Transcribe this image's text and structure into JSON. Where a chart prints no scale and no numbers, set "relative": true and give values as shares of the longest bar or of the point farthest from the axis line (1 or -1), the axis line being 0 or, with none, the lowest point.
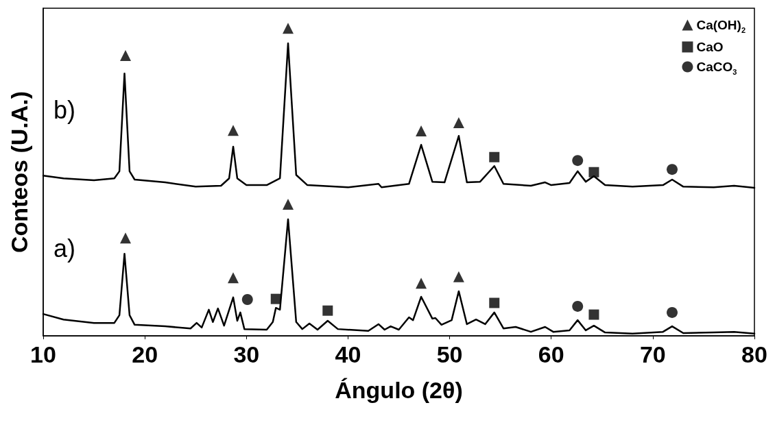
{
  "chart_data": {
    "type": "line",
    "relative": true,
    "xlabel": "Ángulo (2θ)",
    "ylabel": "Conteos (U.A.)",
    "xlim": [
      10,
      80
    ],
    "xticks": [
      10,
      20,
      30,
      40,
      50,
      60,
      70,
      80
    ],
    "legend": "top right",
    "grid": false,
    "line_style": "solid",
    "annotations": [
      "b)",
      "a)"
    ],
    "series": [
      {
        "color": "#000000",
        "marker": "none",
        "x": [
          10,
          12,
          15,
          17,
          17.5,
          18,
          18.5,
          19,
          22,
          25,
          27.5,
          28.3,
          28.7,
          29.1,
          30,
          32,
          33.3,
          34.1,
          34.9,
          36,
          40,
          43,
          43.3,
          46,
          47.2,
          48.3,
          49.5,
          50.9,
          51.7,
          53,
          54.4,
          55.3,
          58,
          59.4,
          60,
          61.8,
          62.6,
          63.4,
          64.2,
          65.3,
          68,
          71,
          71.9,
          73,
          76,
          78,
          80
        ],
        "values": [
          0.521,
          0.512,
          0.506,
          0.512,
          0.535,
          0.853,
          0.535,
          0.508,
          0.499,
          0.485,
          0.488,
          0.512,
          0.615,
          0.512,
          0.49,
          0.49,
          0.512,
          0.951,
          0.523,
          0.49,
          0.483,
          0.494,
          0.483,
          0.494,
          0.621,
          0.501,
          0.499,
          0.65,
          0.499,
          0.501,
          0.552,
          0.494,
          0.488,
          0.499,
          0.49,
          0.497,
          0.535,
          0.501,
          0.519,
          0.49,
          0.485,
          0.49,
          0.508,
          0.485,
          0.483,
          0.488,
          0.481
        ]
      },
      {
        "color": "#000000",
        "marker": "none",
        "x": [
          10,
          12,
          15,
          17,
          17.5,
          18,
          18.5,
          19,
          22,
          24.5,
          25.1,
          25.6,
          26.3,
          26.7,
          27.2,
          27.8,
          28.7,
          29.1,
          29.4,
          29.8,
          32,
          32.6,
          32.9,
          33.3,
          34.1,
          34.9,
          35.5,
          36.2,
          37,
          38,
          39,
          42,
          43,
          43.6,
          44.2,
          45,
          46,
          46.4,
          47.2,
          48.3,
          48.6,
          49.2,
          50.2,
          50.9,
          51.7,
          52.6,
          53.5,
          54.4,
          55.3,
          56.5,
          58,
          59.4,
          60.2,
          61.8,
          62.6,
          63.4,
          64.2,
          65.3,
          68,
          71,
          71.9,
          73,
          76,
          78,
          80
        ],
        "values": [
          0.071,
          0.053,
          0.042,
          0.042,
          0.067,
          0.267,
          0.067,
          0.036,
          0.031,
          0.024,
          0.042,
          0.027,
          0.085,
          0.045,
          0.089,
          0.033,
          0.125,
          0.049,
          0.076,
          0.022,
          0.02,
          0.045,
          0.091,
          0.085,
          0.379,
          0.045,
          0.022,
          0.04,
          0.02,
          0.049,
          0.022,
          0.016,
          0.038,
          0.02,
          0.031,
          0.02,
          0.06,
          0.051,
          0.127,
          0.056,
          0.058,
          0.036,
          0.051,
          0.145,
          0.038,
          0.053,
          0.038,
          0.076,
          0.024,
          0.029,
          0.013,
          0.029,
          0.013,
          0.018,
          0.051,
          0.018,
          0.033,
          0.011,
          0.007,
          0.013,
          0.031,
          0.009,
          0.011,
          0.013,
          0.007
        ]
      },
      {
        "type": "scatter",
        "name": "Ca(OH)$_{2}$",
        "color": "#000000",
        "marker": "triangle",
        "x": [
          18.1,
          28.7,
          34.1,
          47.2,
          50.9,
          18.1,
          28.7,
          34.1,
          47.2,
          50.9
        ],
        "values": [
          0.911,
          0.668,
          1.0,
          0.666,
          0.693,
          0.318,
          0.189,
          0.428,
          0.171,
          0.192
        ]
      },
      {
        "type": "scatter",
        "name": "CaO",
        "color": "#000000",
        "marker": "square",
        "x": [
          54.4,
          64.2,
          32.9,
          38.0,
          54.4,
          64.2
        ],
        "values": [
          0.581,
          0.532,
          0.12,
          0.082,
          0.107,
          0.069
        ]
      },
      {
        "type": "scatter",
        "name": "CaCO$_{3}$",
        "color": "#000000",
        "marker": "circle",
        "x": [
          62.6,
          71.9,
          30.1,
          62.6,
          71.9
        ],
        "values": [
          0.57,
          0.541,
          0.118,
          0.096,
          0.076
        ]
      }
    ]
  }
}
